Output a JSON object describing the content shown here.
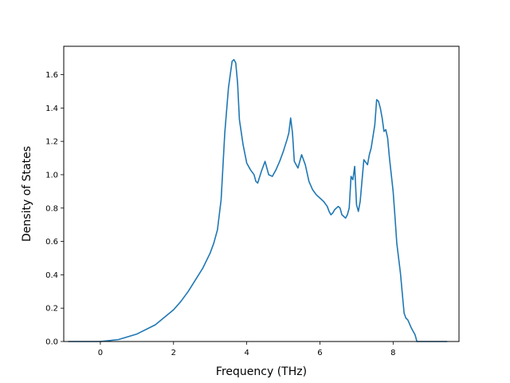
{
  "chart_data": {
    "type": "line",
    "title": "",
    "xlabel": "Frequency (THz)",
    "ylabel": "Density of States",
    "xlim": [
      -1.0,
      9.8
    ],
    "ylim": [
      0.0,
      1.77
    ],
    "xticks": [
      0,
      2,
      4,
      6,
      8
    ],
    "yticks": [
      0.0,
      0.2,
      0.4,
      0.6,
      0.8,
      1.0,
      1.2,
      1.4,
      1.6
    ],
    "xtick_labels": [
      "0",
      "2",
      "4",
      "6",
      "8"
    ],
    "ytick_labels": [
      "0.0",
      "0.2",
      "0.4",
      "0.6",
      "0.8",
      "1.0",
      "1.2",
      "1.4",
      "1.6"
    ],
    "grid": false,
    "series": [
      {
        "color": "#1f77b4",
        "x": [
          -0.87,
          0.0,
          0.5,
          1.0,
          1.5,
          2.0,
          2.2,
          2.4,
          2.6,
          2.8,
          3.0,
          3.1,
          3.2,
          3.3,
          3.4,
          3.5,
          3.6,
          3.65,
          3.7,
          3.75,
          3.8,
          3.9,
          4.0,
          4.1,
          4.2,
          4.25,
          4.3,
          4.4,
          4.5,
          4.6,
          4.7,
          4.8,
          4.9,
          5.0,
          5.1,
          5.15,
          5.2,
          5.25,
          5.3,
          5.4,
          5.5,
          5.6,
          5.7,
          5.8,
          5.9,
          6.0,
          6.1,
          6.2,
          6.25,
          6.3,
          6.35,
          6.4,
          6.5,
          6.55,
          6.6,
          6.7,
          6.75,
          6.8,
          6.85,
          6.9,
          6.95,
          7.0,
          7.05,
          7.1,
          7.2,
          7.3,
          7.35,
          7.4,
          7.5,
          7.55,
          7.6,
          7.65,
          7.7,
          7.75,
          7.8,
          7.85,
          7.9,
          7.95,
          8.0,
          8.05,
          8.1,
          8.2,
          8.3,
          8.35,
          8.4,
          8.5,
          8.6,
          8.65,
          8.7,
          9.0,
          9.47
        ],
        "values": [
          0.0,
          0.0,
          0.012,
          0.045,
          0.1,
          0.19,
          0.24,
          0.3,
          0.37,
          0.44,
          0.53,
          0.59,
          0.67,
          0.85,
          1.25,
          1.52,
          1.68,
          1.69,
          1.67,
          1.55,
          1.33,
          1.18,
          1.07,
          1.03,
          1.0,
          0.96,
          0.95,
          1.02,
          1.08,
          1.0,
          0.99,
          1.03,
          1.08,
          1.14,
          1.21,
          1.25,
          1.34,
          1.25,
          1.08,
          1.04,
          1.12,
          1.06,
          0.96,
          0.91,
          0.88,
          0.86,
          0.84,
          0.81,
          0.78,
          0.76,
          0.77,
          0.79,
          0.81,
          0.8,
          0.76,
          0.74,
          0.76,
          0.8,
          0.99,
          0.97,
          1.05,
          0.82,
          0.78,
          0.84,
          1.09,
          1.06,
          1.12,
          1.16,
          1.3,
          1.45,
          1.44,
          1.4,
          1.34,
          1.26,
          1.27,
          1.22,
          1.1,
          1.0,
          0.9,
          0.75,
          0.59,
          0.41,
          0.17,
          0.14,
          0.13,
          0.08,
          0.04,
          0.0,
          0.0,
          0.0,
          0.0
        ]
      }
    ]
  }
}
